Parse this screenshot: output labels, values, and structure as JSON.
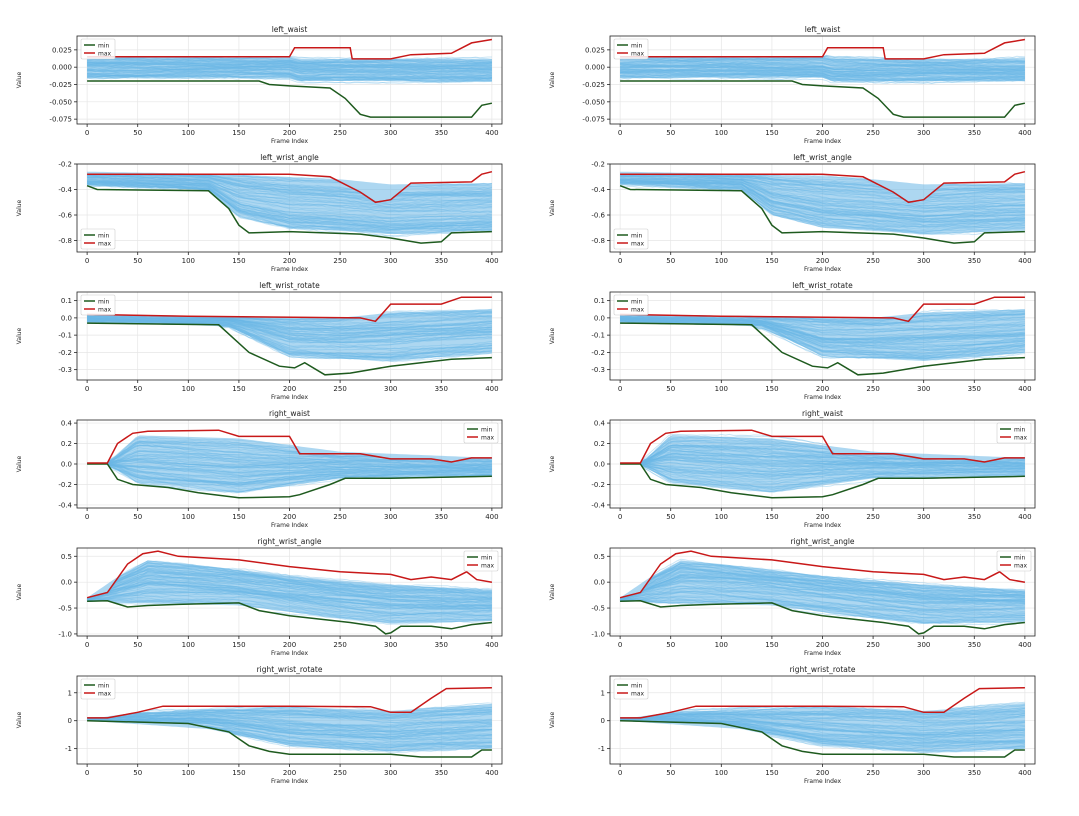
{
  "figure": {
    "layout": "6 rows x 2 columns",
    "colors": {
      "min": "#1e5a1e",
      "max": "#c81818",
      "traces": "#6ab7e6"
    }
  },
  "chart_data": [
    {
      "type": "line",
      "title": "left_waist",
      "xlabel": "Frame Index",
      "ylabel": "Value",
      "xlim": [
        -10,
        410
      ],
      "ylim": [
        -0.082,
        0.045
      ],
      "xticks": [
        0,
        50,
        100,
        150,
        200,
        250,
        300,
        350,
        400
      ],
      "yticks": [
        -0.075,
        -0.05,
        -0.025,
        0.0,
        0.025
      ],
      "ytick_labels": [
        "-0.075",
        "-0.050",
        "-0.025",
        "0.000",
        "0.025"
      ],
      "legend": "top-left",
      "band": {
        "upper": [
          [
            0,
            0.015
          ],
          [
            200,
            0.015
          ],
          [
            210,
            0.012
          ],
          [
            400,
            0.012
          ]
        ],
        "lower": [
          [
            0,
            -0.015
          ],
          [
            200,
            -0.015
          ],
          [
            210,
            -0.02
          ],
          [
            400,
            -0.02
          ]
        ]
      },
      "series": [
        {
          "name": "min",
          "color": "#1e5a1e",
          "points": [
            [
              0,
              -0.02
            ],
            [
              170,
              -0.02
            ],
            [
              180,
              -0.025
            ],
            [
              200,
              -0.027
            ],
            [
              240,
              -0.03
            ],
            [
              255,
              -0.045
            ],
            [
              270,
              -0.068
            ],
            [
              280,
              -0.072
            ],
            [
              380,
              -0.072
            ],
            [
              390,
              -0.055
            ],
            [
              400,
              -0.052
            ]
          ]
        },
        {
          "name": "max",
          "color": "#c81818",
          "points": [
            [
              0,
              0.015
            ],
            [
              200,
              0.015
            ],
            [
              205,
              0.028
            ],
            [
              260,
              0.028
            ],
            [
              262,
              0.012
            ],
            [
              300,
              0.012
            ],
            [
              320,
              0.018
            ],
            [
              360,
              0.02
            ],
            [
              380,
              0.035
            ],
            [
              400,
              0.04
            ]
          ]
        }
      ]
    },
    {
      "type": "line",
      "title": "left_wrist_angle",
      "xlabel": "Frame Index",
      "ylabel": "Value",
      "xlim": [
        -10,
        410
      ],
      "ylim": [
        -0.89,
        -0.2
      ],
      "xticks": [
        0,
        50,
        100,
        150,
        200,
        250,
        300,
        350,
        400
      ],
      "yticks": [
        -0.8,
        -0.6,
        -0.4,
        -0.2
      ],
      "ytick_labels": [
        "-0.8",
        "-0.6",
        "-0.4",
        "-0.2"
      ],
      "legend": "bottom-left",
      "band": {
        "upper": [
          [
            0,
            -0.26
          ],
          [
            140,
            -0.28
          ],
          [
            250,
            -0.32
          ],
          [
            300,
            -0.36
          ],
          [
            400,
            -0.35
          ]
        ],
        "lower": [
          [
            0,
            -0.36
          ],
          [
            120,
            -0.4
          ],
          [
            150,
            -0.6
          ],
          [
            200,
            -0.7
          ],
          [
            300,
            -0.75
          ],
          [
            400,
            -0.72
          ]
        ]
      },
      "series": [
        {
          "name": "min",
          "color": "#1e5a1e",
          "points": [
            [
              0,
              -0.37
            ],
            [
              10,
              -0.4
            ],
            [
              120,
              -0.41
            ],
            [
              140,
              -0.55
            ],
            [
              150,
              -0.68
            ],
            [
              160,
              -0.74
            ],
            [
              200,
              -0.73
            ],
            [
              270,
              -0.75
            ],
            [
              300,
              -0.78
            ],
            [
              330,
              -0.82
            ],
            [
              350,
              -0.81
            ],
            [
              360,
              -0.74
            ],
            [
              400,
              -0.73
            ]
          ]
        },
        {
          "name": "max",
          "color": "#c81818",
          "points": [
            [
              0,
              -0.28
            ],
            [
              200,
              -0.28
            ],
            [
              240,
              -0.3
            ],
            [
              270,
              -0.42
            ],
            [
              285,
              -0.5
            ],
            [
              300,
              -0.48
            ],
            [
              320,
              -0.35
            ],
            [
              380,
              -0.34
            ],
            [
              390,
              -0.28
            ],
            [
              400,
              -0.26
            ]
          ]
        }
      ]
    },
    {
      "type": "line",
      "title": "left_wrist_rotate",
      "xlabel": "Frame Index",
      "ylabel": "Value",
      "xlim": [
        -10,
        410
      ],
      "ylim": [
        -0.36,
        0.15
      ],
      "xticks": [
        0,
        50,
        100,
        150,
        200,
        250,
        300,
        350,
        400
      ],
      "yticks": [
        -0.3,
        -0.2,
        -0.1,
        0.0,
        0.1
      ],
      "ytick_labels": [
        "-0.3",
        "-0.2",
        "-0.1",
        "0.0",
        "0.1"
      ],
      "legend": "top-left",
      "band": {
        "upper": [
          [
            0,
            0.01
          ],
          [
            250,
            0.0
          ],
          [
            300,
            0.03
          ],
          [
            400,
            0.05
          ]
        ],
        "lower": [
          [
            0,
            -0.02
          ],
          [
            140,
            -0.05
          ],
          [
            200,
            -0.22
          ],
          [
            300,
            -0.25
          ],
          [
            400,
            -0.2
          ]
        ]
      },
      "series": [
        {
          "name": "min",
          "color": "#1e5a1e",
          "points": [
            [
              0,
              -0.03
            ],
            [
              130,
              -0.04
            ],
            [
              145,
              -0.12
            ],
            [
              160,
              -0.2
            ],
            [
              190,
              -0.28
            ],
            [
              205,
              -0.29
            ],
            [
              215,
              -0.26
            ],
            [
              235,
              -0.33
            ],
            [
              260,
              -0.32
            ],
            [
              300,
              -0.28
            ],
            [
              360,
              -0.24
            ],
            [
              400,
              -0.23
            ]
          ]
        },
        {
          "name": "max",
          "color": "#c81818",
          "points": [
            [
              0,
              0.02
            ],
            [
              100,
              0.01
            ],
            [
              270,
              0.0
            ],
            [
              285,
              -0.02
            ],
            [
              300,
              0.08
            ],
            [
              350,
              0.08
            ],
            [
              370,
              0.12
            ],
            [
              400,
              0.12
            ]
          ]
        }
      ]
    },
    {
      "type": "line",
      "title": "right_waist",
      "xlabel": "Frame Index",
      "ylabel": "Value",
      "xlim": [
        -10,
        410
      ],
      "ylim": [
        -0.43,
        0.43
      ],
      "xticks": [
        0,
        50,
        100,
        150,
        200,
        250,
        300,
        350,
        400
      ],
      "yticks": [
        -0.4,
        -0.2,
        0.0,
        0.2,
        0.4
      ],
      "ytick_labels": [
        "-0.4",
        "-0.2",
        "0.0",
        "0.2",
        "0.4"
      ],
      "legend": "top-right",
      "band": {
        "upper": [
          [
            0,
            0.0
          ],
          [
            20,
            0.0
          ],
          [
            50,
            0.28
          ],
          [
            150,
            0.25
          ],
          [
            250,
            0.12
          ],
          [
            400,
            0.06
          ]
        ],
        "lower": [
          [
            0,
            0.0
          ],
          [
            20,
            0.0
          ],
          [
            50,
            -0.18
          ],
          [
            150,
            -0.28
          ],
          [
            250,
            -0.14
          ],
          [
            400,
            -0.12
          ]
        ]
      },
      "series": [
        {
          "name": "min",
          "color": "#1e5a1e",
          "points": [
            [
              0,
              0.0
            ],
            [
              20,
              0.0
            ],
            [
              30,
              -0.15
            ],
            [
              45,
              -0.2
            ],
            [
              80,
              -0.23
            ],
            [
              110,
              -0.28
            ],
            [
              150,
              -0.33
            ],
            [
              200,
              -0.32
            ],
            [
              210,
              -0.3
            ],
            [
              240,
              -0.2
            ],
            [
              255,
              -0.14
            ],
            [
              300,
              -0.14
            ],
            [
              400,
              -0.12
            ]
          ]
        },
        {
          "name": "max",
          "color": "#c81818",
          "points": [
            [
              0,
              0.01
            ],
            [
              20,
              0.01
            ],
            [
              30,
              0.2
            ],
            [
              45,
              0.3
            ],
            [
              60,
              0.32
            ],
            [
              130,
              0.33
            ],
            [
              150,
              0.27
            ],
            [
              200,
              0.27
            ],
            [
              210,
              0.1
            ],
            [
              270,
              0.1
            ],
            [
              300,
              0.05
            ],
            [
              340,
              0.05
            ],
            [
              360,
              0.02
            ],
            [
              380,
              0.06
            ],
            [
              400,
              0.06
            ]
          ]
        }
      ]
    },
    {
      "type": "line",
      "title": "right_wrist_angle",
      "xlabel": "Frame Index",
      "ylabel": "Value",
      "xlim": [
        -10,
        410
      ],
      "ylim": [
        -1.04,
        0.66
      ],
      "xticks": [
        0,
        50,
        100,
        150,
        200,
        250,
        300,
        350,
        400
      ],
      "yticks": [
        -1.0,
        -0.5,
        0.0,
        0.5
      ],
      "ytick_labels": [
        "-1.0",
        "-0.5",
        "0.0",
        "0.5"
      ],
      "legend": "top-right",
      "band": {
        "upper": [
          [
            0,
            -0.3
          ],
          [
            30,
            0.1
          ],
          [
            60,
            0.42
          ],
          [
            100,
            0.35
          ],
          [
            200,
            0.12
          ],
          [
            300,
            -0.05
          ],
          [
            400,
            -0.15
          ]
        ],
        "lower": [
          [
            0,
            -0.35
          ],
          [
            40,
            -0.4
          ],
          [
            150,
            -0.45
          ],
          [
            250,
            -0.7
          ],
          [
            300,
            -0.8
          ],
          [
            400,
            -0.75
          ]
        ]
      },
      "series": [
        {
          "name": "min",
          "color": "#1e5a1e",
          "points": [
            [
              0,
              -0.37
            ],
            [
              20,
              -0.36
            ],
            [
              30,
              -0.42
            ],
            [
              40,
              -0.48
            ],
            [
              60,
              -0.45
            ],
            [
              90,
              -0.43
            ],
            [
              150,
              -0.4
            ],
            [
              170,
              -0.55
            ],
            [
              200,
              -0.65
            ],
            [
              260,
              -0.78
            ],
            [
              285,
              -0.85
            ],
            [
              295,
              -1.0
            ],
            [
              300,
              -0.98
            ],
            [
              310,
              -0.85
            ],
            [
              340,
              -0.85
            ],
            [
              360,
              -0.9
            ],
            [
              380,
              -0.82
            ],
            [
              400,
              -0.78
            ]
          ]
        },
        {
          "name": "max",
          "color": "#c81818",
          "points": [
            [
              0,
              -0.3
            ],
            [
              20,
              -0.2
            ],
            [
              40,
              0.35
            ],
            [
              55,
              0.55
            ],
            [
              70,
              0.6
            ],
            [
              90,
              0.5
            ],
            [
              150,
              0.43
            ],
            [
              200,
              0.3
            ],
            [
              250,
              0.2
            ],
            [
              300,
              0.15
            ],
            [
              320,
              0.05
            ],
            [
              340,
              0.1
            ],
            [
              360,
              0.05
            ],
            [
              375,
              0.2
            ],
            [
              385,
              0.05
            ],
            [
              400,
              0.0
            ]
          ]
        }
      ]
    },
    {
      "type": "line",
      "title": "right_wrist_rotate",
      "xlabel": "Frame Index",
      "ylabel": "Value",
      "xlim": [
        -10,
        410
      ],
      "ylim": [
        -1.55,
        1.6
      ],
      "xticks": [
        0,
        50,
        100,
        150,
        200,
        250,
        300,
        350,
        400
      ],
      "yticks": [
        -1,
        0,
        1
      ],
      "ytick_labels": [
        "-1",
        "0",
        "1"
      ],
      "legend": "top-left",
      "band": {
        "upper": [
          [
            0,
            0.05
          ],
          [
            50,
            0.3
          ],
          [
            200,
            0.5
          ],
          [
            300,
            0.35
          ],
          [
            400,
            0.6
          ]
        ],
        "lower": [
          [
            0,
            0.0
          ],
          [
            120,
            -0.3
          ],
          [
            200,
            -0.9
          ],
          [
            300,
            -1.1
          ],
          [
            400,
            -1.0
          ]
        ]
      },
      "series": [
        {
          "name": "min",
          "color": "#1e5a1e",
          "points": [
            [
              0,
              0.0
            ],
            [
              100,
              -0.1
            ],
            [
              140,
              -0.4
            ],
            [
              160,
              -0.9
            ],
            [
              180,
              -1.1
            ],
            [
              200,
              -1.2
            ],
            [
              300,
              -1.2
            ],
            [
              330,
              -1.3
            ],
            [
              380,
              -1.3
            ],
            [
              390,
              -1.05
            ],
            [
              400,
              -1.05
            ]
          ]
        },
        {
          "name": "max",
          "color": "#c81818",
          "points": [
            [
              0,
              0.1
            ],
            [
              20,
              0.1
            ],
            [
              50,
              0.3
            ],
            [
              75,
              0.52
            ],
            [
              200,
              0.52
            ],
            [
              280,
              0.5
            ],
            [
              300,
              0.3
            ],
            [
              320,
              0.3
            ],
            [
              340,
              0.8
            ],
            [
              355,
              1.15
            ],
            [
              400,
              1.18
            ]
          ]
        }
      ]
    }
  ]
}
